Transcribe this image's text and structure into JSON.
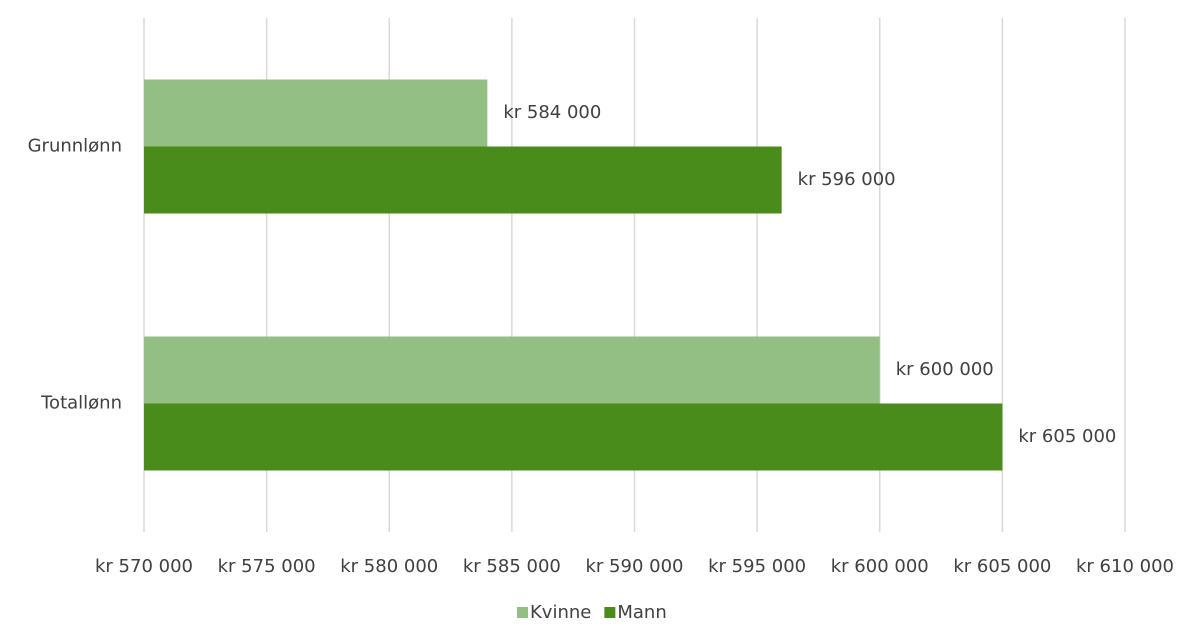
{
  "chart_data": {
    "type": "bar",
    "orientation": "horizontal",
    "categories": [
      "Grunnlønn",
      "Totallønn"
    ],
    "series": [
      {
        "name": "Kvinne",
        "color": "#93bf85",
        "values": [
          584000,
          600000
        ],
        "value_labels": [
          "kr 584 000",
          "kr 600 000"
        ]
      },
      {
        "name": "Mann",
        "color": "#4a8c1c",
        "values": [
          596000,
          605000
        ],
        "value_labels": [
          "kr 596 000",
          "kr 605 000"
        ]
      }
    ],
    "xlim": [
      570000,
      610000
    ],
    "xticks": [
      {
        "value": 570000,
        "label": "kr 570 000"
      },
      {
        "value": 575000,
        "label": "kr 575 000"
      },
      {
        "value": 580000,
        "label": "kr 580 000"
      },
      {
        "value": 585000,
        "label": "kr 585 000"
      },
      {
        "value": 590000,
        "label": "kr 590 000"
      },
      {
        "value": 595000,
        "label": "kr 595 000"
      },
      {
        "value": 600000,
        "label": "kr 600 000"
      },
      {
        "value": 605000,
        "label": "kr 605 000"
      },
      {
        "value": 610000,
        "label": "kr 610 000"
      }
    ],
    "grid": true,
    "legend": "bottom"
  }
}
